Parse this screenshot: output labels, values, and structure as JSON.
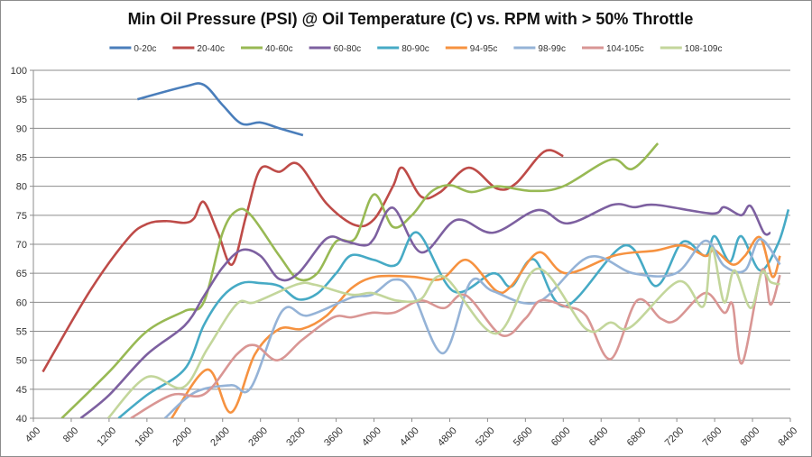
{
  "chart_data": {
    "type": "line",
    "title": "Min Oil Pressure (PSI) @ Oil Temperature (C) vs. RPM with > 50% Throttle",
    "xlabel": "",
    "ylabel": "",
    "xlim": [
      400,
      8400
    ],
    "ylim": [
      40,
      100
    ],
    "x_ticks": [
      400,
      800,
      1200,
      1600,
      2000,
      2400,
      2800,
      3200,
      3600,
      4000,
      4400,
      4800,
      5200,
      5600,
      6000,
      6400,
      6800,
      7200,
      7600,
      8000,
      8400
    ],
    "y_ticks": [
      40,
      45,
      50,
      55,
      60,
      65,
      70,
      75,
      80,
      85,
      90,
      95,
      100
    ],
    "grid": "horizontal",
    "legend_position": "top",
    "smoothed": true,
    "series": [
      {
        "name": "0-20c",
        "color": "#4a7ebb",
        "points": [
          [
            1500,
            95
          ],
          [
            2000,
            97.2
          ],
          [
            2200,
            97.5
          ],
          [
            2400,
            94
          ],
          [
            2600,
            90.8
          ],
          [
            2800,
            91
          ],
          [
            3000,
            90
          ],
          [
            3250,
            88.8
          ]
        ]
      },
      {
        "name": "20-40c",
        "color": "#be4b48",
        "points": [
          [
            500,
            48
          ],
          [
            1000,
            62
          ],
          [
            1400,
            71
          ],
          [
            1600,
            73.5
          ],
          [
            1800,
            74
          ],
          [
            2000,
            73.7
          ],
          [
            2100,
            74.5
          ],
          [
            2200,
            77.3
          ],
          [
            2350,
            72
          ],
          [
            2500,
            66.5
          ],
          [
            2650,
            75
          ],
          [
            2800,
            83
          ],
          [
            3000,
            82.5
          ],
          [
            3200,
            83.8
          ],
          [
            3500,
            77
          ],
          [
            3800,
            73.3
          ],
          [
            4000,
            74.3
          ],
          [
            4200,
            80
          ],
          [
            4300,
            83.2
          ],
          [
            4500,
            78.2
          ],
          [
            4700,
            79
          ],
          [
            5000,
            83.2
          ],
          [
            5300,
            79.6
          ],
          [
            5500,
            80.5
          ],
          [
            5800,
            86
          ],
          [
            6000,
            85.2
          ]
        ]
      },
      {
        "name": "40-60c",
        "color": "#98b954",
        "points": [
          [
            700,
            40
          ],
          [
            1200,
            48
          ],
          [
            1600,
            55
          ],
          [
            2000,
            58.5
          ],
          [
            2200,
            60
          ],
          [
            2400,
            72
          ],
          [
            2550,
            75.8
          ],
          [
            2700,
            75
          ],
          [
            3000,
            68
          ],
          [
            3200,
            64
          ],
          [
            3400,
            65
          ],
          [
            3600,
            70.5
          ],
          [
            3800,
            71
          ],
          [
            4000,
            78.6
          ],
          [
            4200,
            73
          ],
          [
            4400,
            75
          ],
          [
            4600,
            79
          ],
          [
            4800,
            80.2
          ],
          [
            5030,
            79
          ],
          [
            5300,
            80
          ],
          [
            5670,
            79.2
          ],
          [
            6000,
            80
          ],
          [
            6500,
            84.6
          ],
          [
            6730,
            83
          ],
          [
            7000,
            87.4
          ]
        ]
      },
      {
        "name": "60-80c",
        "color": "#7d60a0",
        "points": [
          [
            900,
            40
          ],
          [
            1200,
            44
          ],
          [
            1600,
            51
          ],
          [
            2000,
            56
          ],
          [
            2200,
            61
          ],
          [
            2400,
            66
          ],
          [
            2600,
            69
          ],
          [
            2800,
            68
          ],
          [
            3000,
            64
          ],
          [
            3200,
            65
          ],
          [
            3500,
            71
          ],
          [
            3700,
            70.5
          ],
          [
            3900,
            69.8
          ],
          [
            4000,
            71
          ],
          [
            4200,
            76.3
          ],
          [
            4500,
            68.6
          ],
          [
            4870,
            74.2
          ],
          [
            5260,
            72
          ],
          [
            5730,
            75.9
          ],
          [
            6050,
            73.6
          ],
          [
            6520,
            76.8
          ],
          [
            6750,
            76.4
          ],
          [
            6980,
            76.8
          ],
          [
            7570,
            75.3
          ],
          [
            7700,
            76.4
          ],
          [
            7880,
            75
          ],
          [
            7980,
            76.6
          ],
          [
            8120,
            72
          ],
          [
            8190,
            72
          ]
        ]
      },
      {
        "name": "80-90c",
        "color": "#46aac5",
        "points": [
          [
            1300,
            40
          ],
          [
            1600,
            44
          ],
          [
            2000,
            48.5
          ],
          [
            2200,
            56
          ],
          [
            2400,
            61
          ],
          [
            2600,
            63.3
          ],
          [
            2800,
            63.3
          ],
          [
            3000,
            62.8
          ],
          [
            3200,
            60.5
          ],
          [
            3400,
            61.5
          ],
          [
            3600,
            65
          ],
          [
            3760,
            68.1
          ],
          [
            4000,
            67.3
          ],
          [
            4240,
            66.5
          ],
          [
            4460,
            72
          ],
          [
            4840,
            61.9
          ],
          [
            5260,
            65
          ],
          [
            5450,
            62.7
          ],
          [
            5690,
            67.4
          ],
          [
            6020,
            59.3
          ],
          [
            6650,
            69.8
          ],
          [
            6980,
            62.8
          ],
          [
            7260,
            70.4
          ],
          [
            7500,
            68
          ],
          [
            7600,
            71.4
          ],
          [
            7760,
            67
          ],
          [
            7880,
            71.4
          ],
          [
            8080,
            65.5
          ],
          [
            8270,
            70.1
          ],
          [
            8380,
            76
          ]
        ]
      },
      {
        "name": "94-95c",
        "color": "#f69240",
        "points": [
          [
            1860,
            40
          ],
          [
            2240,
            48.4
          ],
          [
            2490,
            41
          ],
          [
            2740,
            51
          ],
          [
            3000,
            55.4
          ],
          [
            3240,
            55.4
          ],
          [
            3500,
            57.7
          ],
          [
            3760,
            62.4
          ],
          [
            4020,
            64.4
          ],
          [
            4400,
            64.4
          ],
          [
            4710,
            64
          ],
          [
            4980,
            67.3
          ],
          [
            5290,
            62
          ],
          [
            5450,
            62.8
          ],
          [
            5740,
            68.6
          ],
          [
            6030,
            65
          ],
          [
            6550,
            68.1
          ],
          [
            6970,
            68.9
          ],
          [
            7260,
            69.8
          ],
          [
            7500,
            68
          ],
          [
            7600,
            69
          ],
          [
            7790,
            66.5
          ],
          [
            7920,
            68
          ],
          [
            8080,
            71.2
          ],
          [
            8210,
            64.4
          ],
          [
            8290,
            68
          ]
        ]
      },
      {
        "name": "98-99c",
        "color": "#95b3d7",
        "points": [
          [
            1790,
            40
          ],
          [
            2110,
            44.5
          ],
          [
            2490,
            45.7
          ],
          [
            2700,
            45.3
          ],
          [
            3030,
            58.5
          ],
          [
            3300,
            57.7
          ],
          [
            3760,
            60.8
          ],
          [
            3980,
            61.3
          ],
          [
            4210,
            63.9
          ],
          [
            4400,
            61.9
          ],
          [
            4730,
            51.2
          ],
          [
            5020,
            63.5
          ],
          [
            5260,
            61.9
          ],
          [
            5730,
            60
          ],
          [
            6270,
            67.8
          ],
          [
            6740,
            65
          ],
          [
            7190,
            65
          ],
          [
            7500,
            70.6
          ],
          [
            7700,
            66.3
          ],
          [
            7920,
            65.5
          ],
          [
            8080,
            70.9
          ],
          [
            8290,
            66.5
          ]
        ]
      },
      {
        "name": "104-105c",
        "color": "#d99694",
        "points": [
          [
            1430,
            40
          ],
          [
            1860,
            44
          ],
          [
            2210,
            44.2
          ],
          [
            2550,
            51
          ],
          [
            2740,
            52.6
          ],
          [
            2980,
            50
          ],
          [
            3240,
            53.5
          ],
          [
            3570,
            57.4
          ],
          [
            3760,
            57.4
          ],
          [
            3980,
            58.2
          ],
          [
            4210,
            58.2
          ],
          [
            4490,
            60.3
          ],
          [
            4740,
            59
          ],
          [
            4970,
            61.2
          ],
          [
            5350,
            54.3
          ],
          [
            5600,
            57.2
          ],
          [
            5760,
            60.3
          ],
          [
            6020,
            59.3
          ],
          [
            6240,
            57.7
          ],
          [
            6500,
            50.2
          ],
          [
            6780,
            60.3
          ],
          [
            7030,
            57.2
          ],
          [
            7190,
            56.9
          ],
          [
            7500,
            61.6
          ],
          [
            7700,
            58.2
          ],
          [
            7790,
            59.6
          ],
          [
            7890,
            49.5
          ],
          [
            8100,
            65.5
          ],
          [
            8190,
            59.6
          ],
          [
            8290,
            64.7
          ]
        ]
      },
      {
        "name": "108-109c",
        "color": "#c3d69b",
        "points": [
          [
            1190,
            40
          ],
          [
            1600,
            47.1
          ],
          [
            1980,
            45.3
          ],
          [
            2240,
            52
          ],
          [
            2550,
            59.7
          ],
          [
            2740,
            60
          ],
          [
            3190,
            63.1
          ],
          [
            3380,
            63
          ],
          [
            3760,
            61.3
          ],
          [
            3980,
            61.6
          ],
          [
            4240,
            60.3
          ],
          [
            4490,
            60.5
          ],
          [
            4740,
            64.4
          ],
          [
            5290,
            54.6
          ],
          [
            5730,
            65.8
          ],
          [
            6240,
            55.4
          ],
          [
            6500,
            56.5
          ],
          [
            6710,
            55.7
          ],
          [
            7220,
            63.6
          ],
          [
            7480,
            59.3
          ],
          [
            7570,
            69.4
          ],
          [
            7700,
            60
          ],
          [
            7810,
            65.5
          ],
          [
            7980,
            59
          ],
          [
            8100,
            65.2
          ],
          [
            8190,
            63.5
          ],
          [
            8290,
            63.1
          ]
        ]
      }
    ]
  }
}
